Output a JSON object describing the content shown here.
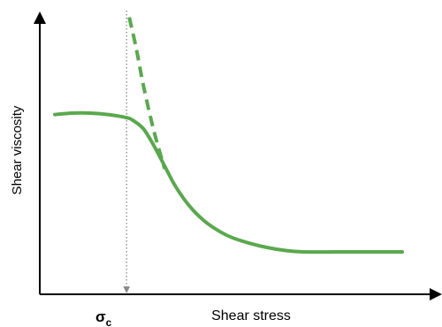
{
  "chart_data": {
    "type": "line",
    "title": "",
    "xlabel": "Shear stress",
    "ylabel": "Shear viscosity",
    "xlim": [
      0,
      10
    ],
    "ylim": [
      0,
      10
    ],
    "grid": false,
    "legend": "none",
    "axis_numbers_shown": false,
    "series": [
      {
        "style": "solid",
        "color": "#5aa84e",
        "x": [
          0.0,
          0.5,
          1.0,
          1.5,
          2.0,
          2.2,
          2.5,
          2.8,
          3.1,
          3.4,
          3.8,
          4.2,
          4.6,
          5.0,
          5.5,
          6.0,
          6.5,
          7.0,
          8.0,
          9.0,
          9.8
        ],
        "y": [
          6.6,
          6.65,
          6.65,
          6.6,
          6.5,
          6.4,
          6.1,
          5.5,
          4.8,
          4.1,
          3.4,
          2.9,
          2.55,
          2.3,
          2.1,
          1.95,
          1.85,
          1.8,
          1.8,
          1.8,
          1.8
        ]
      },
      {
        "style": "dashed",
        "color": "#5aa84e",
        "x": [
          2.1,
          2.3,
          2.5,
          2.8,
          3.1
        ],
        "y": [
          10.0,
          8.9,
          7.6,
          6.0,
          4.7
        ]
      }
    ],
    "reference_lines": [
      {
        "axis": "x",
        "value": 2.0,
        "style": "dotted",
        "color": "#888888",
        "arrow": "down"
      }
    ],
    "annotations": [
      {
        "label_main": "σ",
        "label_sub": "c",
        "x": 2.0
      }
    ]
  }
}
